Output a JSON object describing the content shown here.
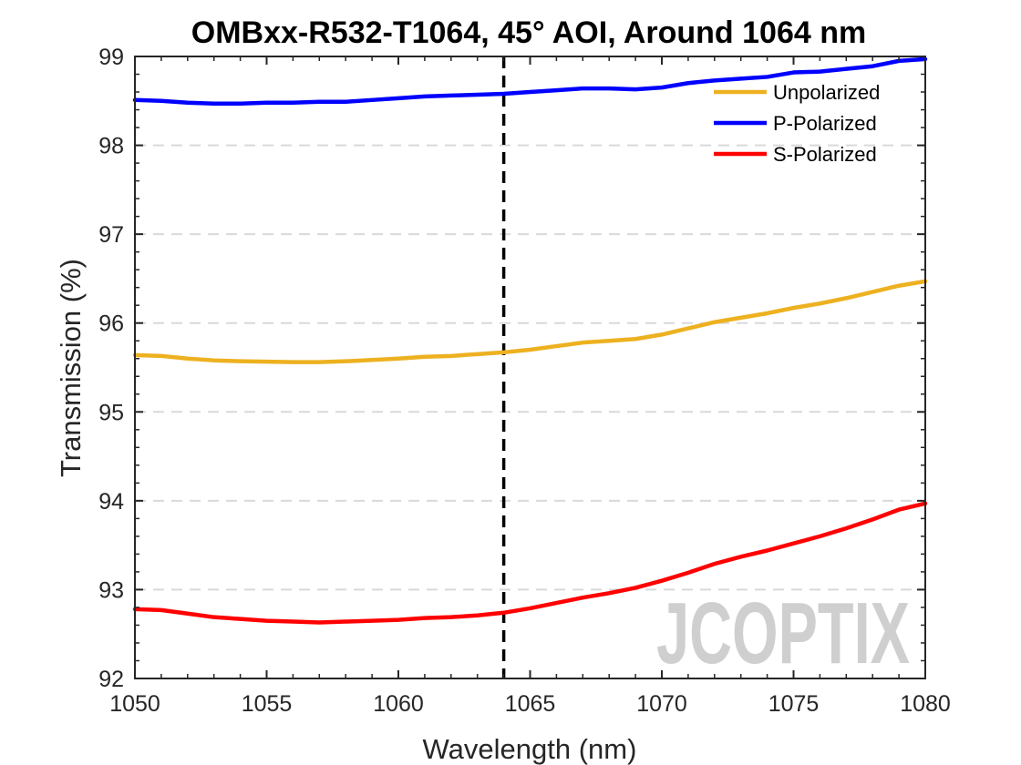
{
  "chart_data": {
    "type": "line",
    "title": "OMBxx-R532-T1064, 45° AOI, Around 1064 nm",
    "xlabel": "Wavelength (nm)",
    "ylabel": "Transmission (%)",
    "xlim": [
      1050,
      1080
    ],
    "ylim": [
      92,
      99
    ],
    "xticks": [
      1050,
      1055,
      1060,
      1065,
      1070,
      1075,
      1080
    ],
    "yticks": [
      92,
      93,
      94,
      95,
      96,
      97,
      98,
      99
    ],
    "grid": "horizontal dashed",
    "legend_position": "top-right",
    "reference_line_x": 1064,
    "x": [
      1050,
      1051,
      1052,
      1053,
      1054,
      1055,
      1056,
      1057,
      1058,
      1059,
      1060,
      1061,
      1062,
      1063,
      1064,
      1065,
      1066,
      1067,
      1068,
      1069,
      1070,
      1071,
      1072,
      1073,
      1074,
      1075,
      1076,
      1077,
      1078,
      1079,
      1080
    ],
    "series": [
      {
        "name": "Unpolarized",
        "color": "#EDB120",
        "values": [
          95.64,
          95.63,
          95.6,
          95.58,
          95.57,
          95.565,
          95.56,
          95.56,
          95.57,
          95.585,
          95.6,
          95.62,
          95.63,
          95.65,
          95.67,
          95.7,
          95.74,
          95.78,
          95.8,
          95.82,
          95.87,
          95.94,
          96.01,
          96.06,
          96.11,
          96.17,
          96.22,
          96.28,
          96.35,
          96.42,
          96.47
        ]
      },
      {
        "name": "P-Polarized",
        "color": "#0000FF",
        "values": [
          98.51,
          98.5,
          98.48,
          98.47,
          98.47,
          98.48,
          98.48,
          98.49,
          98.49,
          98.51,
          98.53,
          98.55,
          98.56,
          98.57,
          98.58,
          98.6,
          98.62,
          98.64,
          98.64,
          98.63,
          98.65,
          98.7,
          98.73,
          98.75,
          98.77,
          98.82,
          98.83,
          98.86,
          98.89,
          98.95,
          98.97
        ]
      },
      {
        "name": "S-Polarized",
        "color": "#FF0000",
        "values": [
          92.78,
          92.77,
          92.73,
          92.69,
          92.67,
          92.65,
          92.64,
          92.63,
          92.64,
          92.65,
          92.66,
          92.68,
          92.69,
          92.71,
          92.74,
          92.79,
          92.85,
          92.91,
          92.96,
          93.02,
          93.1,
          93.19,
          93.29,
          93.37,
          93.44,
          93.52,
          93.6,
          93.69,
          93.79,
          93.9,
          93.97
        ]
      }
    ]
  },
  "watermark": {
    "text": "JCOPTIX",
    "color": "#cfcfcf",
    "accent_color": "#f5d9b3"
  }
}
